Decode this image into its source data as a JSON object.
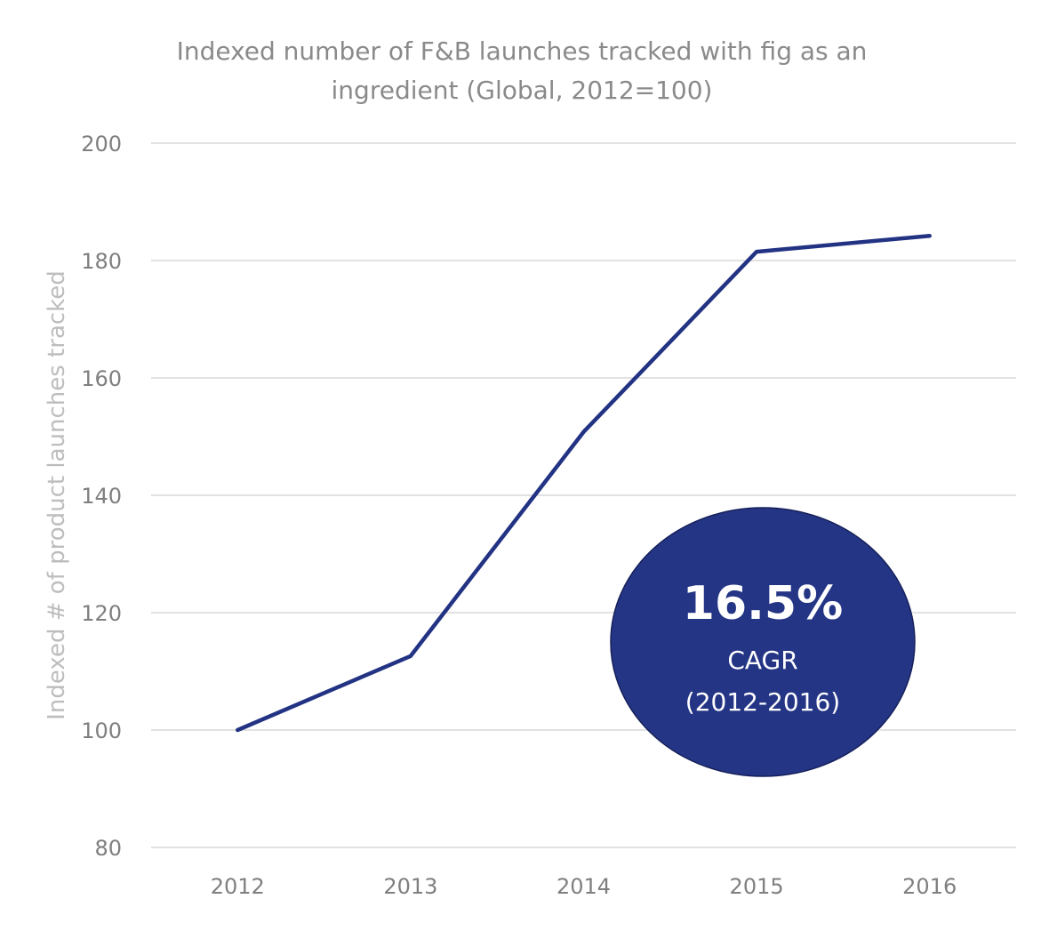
{
  "chart_data": {
    "type": "line",
    "title": "Indexed number of F&B launches tracked with fig as an ingredient (Global, 2012=100)",
    "title_lines": [
      "Indexed number of F&B launches tracked with fig as an",
      "ingredient (Global, 2012=100)"
    ],
    "xlabel": "",
    "ylabel": "Indexed # of product launches tracked",
    "categories": [
      "2012",
      "2013",
      "2014",
      "2015",
      "2016"
    ],
    "series": [
      {
        "values": [
          100,
          112.6,
          150.8,
          181.5,
          184.2
        ],
        "color": "#233384"
      }
    ],
    "ylim": [
      80,
      200
    ],
    "yticks": [
      80,
      100,
      120,
      140,
      160,
      180,
      200
    ],
    "grid": true,
    "legend": "none",
    "annotation": {
      "value": "16.5%",
      "label": "CAGR",
      "period": "(2012-2016)",
      "color": "#243585"
    }
  }
}
